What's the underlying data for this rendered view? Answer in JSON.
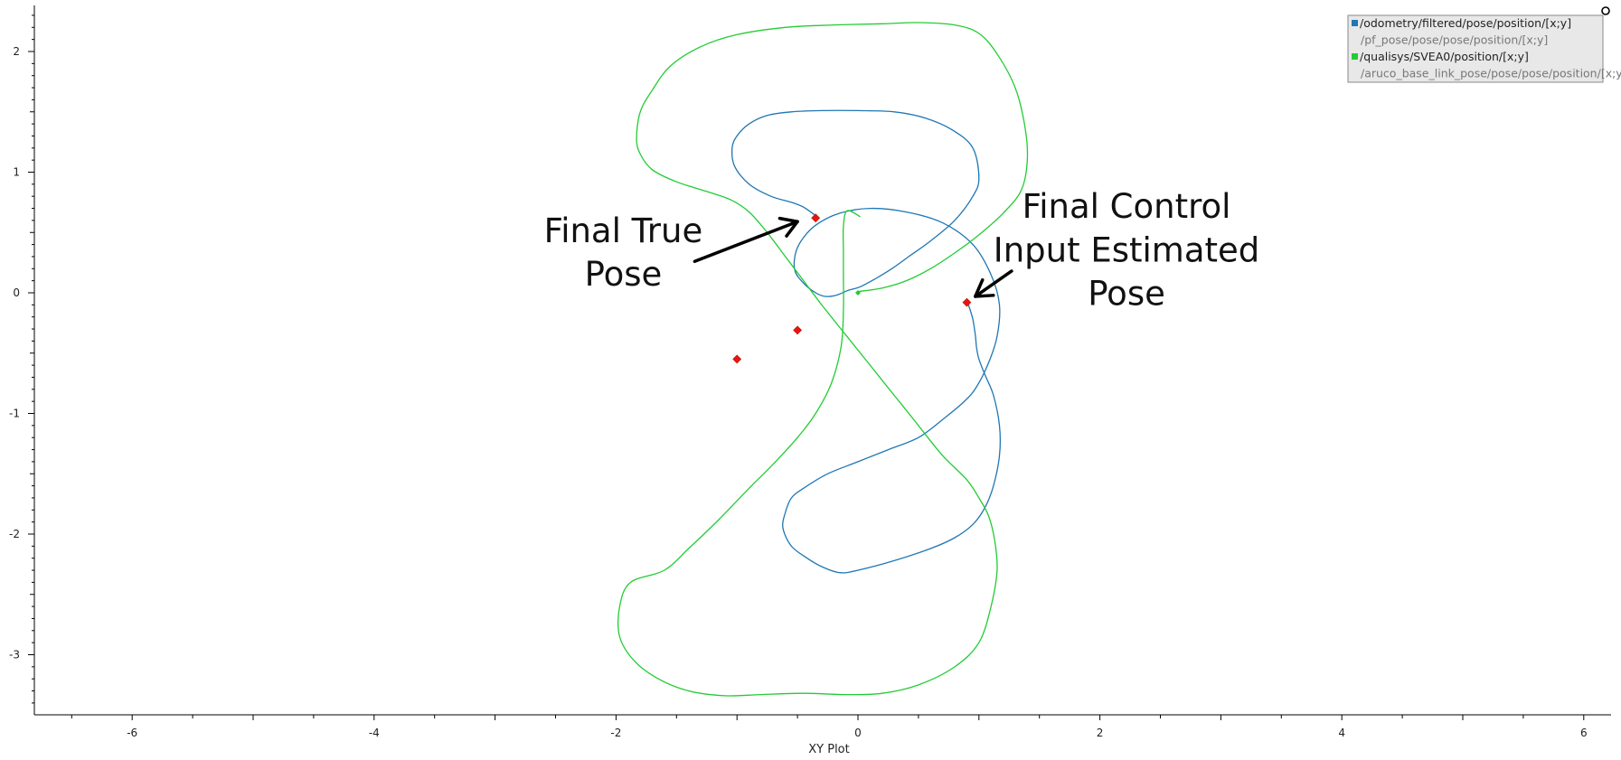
{
  "chart_data": {
    "type": "scatter",
    "title": "",
    "xlabel": "XY Plot",
    "ylabel": "",
    "xlim": [
      -6.8,
      6.2
    ],
    "ylim": [
      -3.5,
      2.38
    ],
    "grid": false,
    "legend_position": "top-right",
    "x_ticks": [
      -6,
      -4,
      -2,
      0,
      2,
      4,
      6
    ],
    "x_tick_labels": [
      "-6",
      "-4",
      "-2",
      "0",
      "2",
      "4",
      "6"
    ],
    "y_ticks": [
      2,
      1,
      0,
      -1,
      -2,
      -3
    ],
    "y_tick_labels": [
      "2",
      "1",
      "0",
      "-1",
      "-2",
      "-3"
    ],
    "series": [
      {
        "name": "/odometry/filtered/pose/position/[x;y]",
        "kind": "line",
        "color": "#1f77b4",
        "legend_text_color": "#222222",
        "x": [
          -0.35,
          -0.45,
          -0.55,
          -0.72,
          -0.9,
          -1.02,
          -1.04,
          -1.0,
          -0.9,
          -0.75,
          -0.55,
          -0.3,
          0.0,
          0.3,
          0.55,
          0.78,
          0.95,
          1.0,
          0.95,
          0.8,
          0.6,
          0.42,
          0.28,
          0.15,
          0.02,
          -0.08,
          -0.18,
          -0.27,
          -0.35,
          -0.45,
          -0.52,
          -0.52,
          -0.47,
          -0.35,
          -0.15,
          0.1,
          0.4,
          0.7,
          0.95,
          1.1,
          1.17,
          1.15,
          1.08,
          0.98,
          0.88,
          0.7,
          0.5,
          0.25,
          0.0,
          -0.25,
          -0.45,
          -0.55,
          -0.6,
          -0.62,
          -0.55,
          -0.42,
          -0.3,
          -0.15,
          0.0,
          0.3,
          0.6,
          0.8,
          0.95,
          1.05,
          1.12,
          1.17,
          1.17,
          1.12,
          1.05,
          1.0,
          0.98,
          0.97,
          0.95,
          0.92,
          0.9
        ],
        "y": [
          0.64,
          0.71,
          0.75,
          0.8,
          0.9,
          1.05,
          1.2,
          1.3,
          1.4,
          1.47,
          1.5,
          1.51,
          1.51,
          1.5,
          1.45,
          1.35,
          1.2,
          0.95,
          0.8,
          0.6,
          0.43,
          0.3,
          0.2,
          0.12,
          0.05,
          0.02,
          -0.02,
          -0.03,
          0.0,
          0.08,
          0.18,
          0.31,
          0.43,
          0.56,
          0.66,
          0.7,
          0.67,
          0.58,
          0.4,
          0.15,
          -0.1,
          -0.36,
          -0.58,
          -0.78,
          -0.9,
          -1.05,
          -1.2,
          -1.3,
          -1.4,
          -1.5,
          -1.62,
          -1.7,
          -1.82,
          -1.95,
          -2.1,
          -2.2,
          -2.27,
          -2.32,
          -2.3,
          -2.22,
          -2.12,
          -2.03,
          -1.92,
          -1.78,
          -1.6,
          -1.35,
          -1.1,
          -0.85,
          -0.68,
          -0.55,
          -0.45,
          -0.35,
          -0.22,
          -0.12,
          -0.07
        ]
      },
      {
        "name": "/pf_pose/pose/pose/position/[x;y]",
        "kind": "line",
        "color": "#cccccc",
        "legend_text_color": "#777777",
        "x": [],
        "y": []
      },
      {
        "name": "/qualisys/SVEA0/position/[x;y]",
        "kind": "line",
        "color": "#22cc33",
        "legend_text_color": "#222222",
        "x": [
          0.0,
          0.2,
          0.4,
          0.6,
          0.8,
          1.0,
          1.2,
          1.35,
          1.4,
          1.38,
          1.3,
          1.15,
          1.0,
          0.8,
          0.5,
          0.2,
          -0.2,
          -0.6,
          -1.0,
          -1.3,
          -1.55,
          -1.7,
          -1.8,
          -1.83,
          -1.8,
          -1.7,
          -1.5,
          -1.25,
          -1.05,
          -0.9,
          -0.75,
          -0.6,
          -0.45,
          -0.3,
          -0.1,
          0.1,
          0.3,
          0.5,
          0.7,
          0.9,
          1.0,
          1.08,
          1.13,
          1.15,
          1.1,
          1.0,
          0.8,
          0.5,
          0.2,
          -0.1,
          -0.45,
          -0.8,
          -1.1,
          -1.4,
          -1.65,
          -1.85,
          -1.97,
          -1.97,
          -1.88,
          -1.6,
          -1.4,
          -1.15,
          -0.9,
          -0.7,
          -0.5,
          -0.35,
          -0.22,
          -0.14,
          -0.12,
          -0.12,
          -0.12,
          -0.12,
          -0.09,
          0.02
        ],
        "y": [
          0.01,
          0.04,
          0.1,
          0.2,
          0.33,
          0.48,
          0.66,
          0.85,
          1.1,
          1.38,
          1.7,
          1.98,
          2.15,
          2.22,
          2.24,
          2.23,
          2.22,
          2.2,
          2.14,
          2.04,
          1.88,
          1.68,
          1.5,
          1.28,
          1.15,
          1.02,
          0.92,
          0.84,
          0.77,
          0.67,
          0.5,
          0.3,
          0.1,
          -0.1,
          -0.35,
          -0.6,
          -0.85,
          -1.1,
          -1.35,
          -1.55,
          -1.7,
          -1.85,
          -2.05,
          -2.3,
          -2.6,
          -2.9,
          -3.1,
          -3.25,
          -3.32,
          -3.33,
          -3.32,
          -3.33,
          -3.34,
          -3.3,
          -3.2,
          -3.05,
          -2.85,
          -2.6,
          -2.4,
          -2.3,
          -2.12,
          -1.88,
          -1.62,
          -1.42,
          -1.2,
          -1.0,
          -0.75,
          -0.45,
          -0.15,
          0.15,
          0.35,
          0.55,
          0.68,
          0.63
        ]
      },
      {
        "name": "/aruco_base_link_pose/pose/pose/position/[x;y]",
        "kind": "markers",
        "color": "#ee1111",
        "legend_text_color": "#777777",
        "x": [
          -0.35,
          -0.5,
          -1.0,
          0.9
        ],
        "y": [
          0.62,
          -0.31,
          -0.55,
          -0.08
        ]
      }
    ],
    "start_marker": {
      "x": 0.0,
      "y": 0.0,
      "color": "#22cc33"
    },
    "annotations": [
      {
        "id": "true-pose",
        "lines": [
          "Final True",
          "Pose"
        ],
        "anchor_x": -1.94,
        "anchor_y": 0.42,
        "line_height": 0.36,
        "arrow_from": [
          -1.35,
          0.26
        ],
        "arrow_to": [
          -0.5,
          0.59
        ]
      },
      {
        "id": "control-pose",
        "lines": [
          "Final Control",
          "Input Estimated",
          "Pose"
        ],
        "anchor_x": 2.22,
        "anchor_y": 0.62,
        "line_height": 0.36,
        "arrow_from": [
          1.27,
          0.18
        ],
        "arrow_to": [
          0.97,
          -0.03
        ]
      }
    ]
  }
}
